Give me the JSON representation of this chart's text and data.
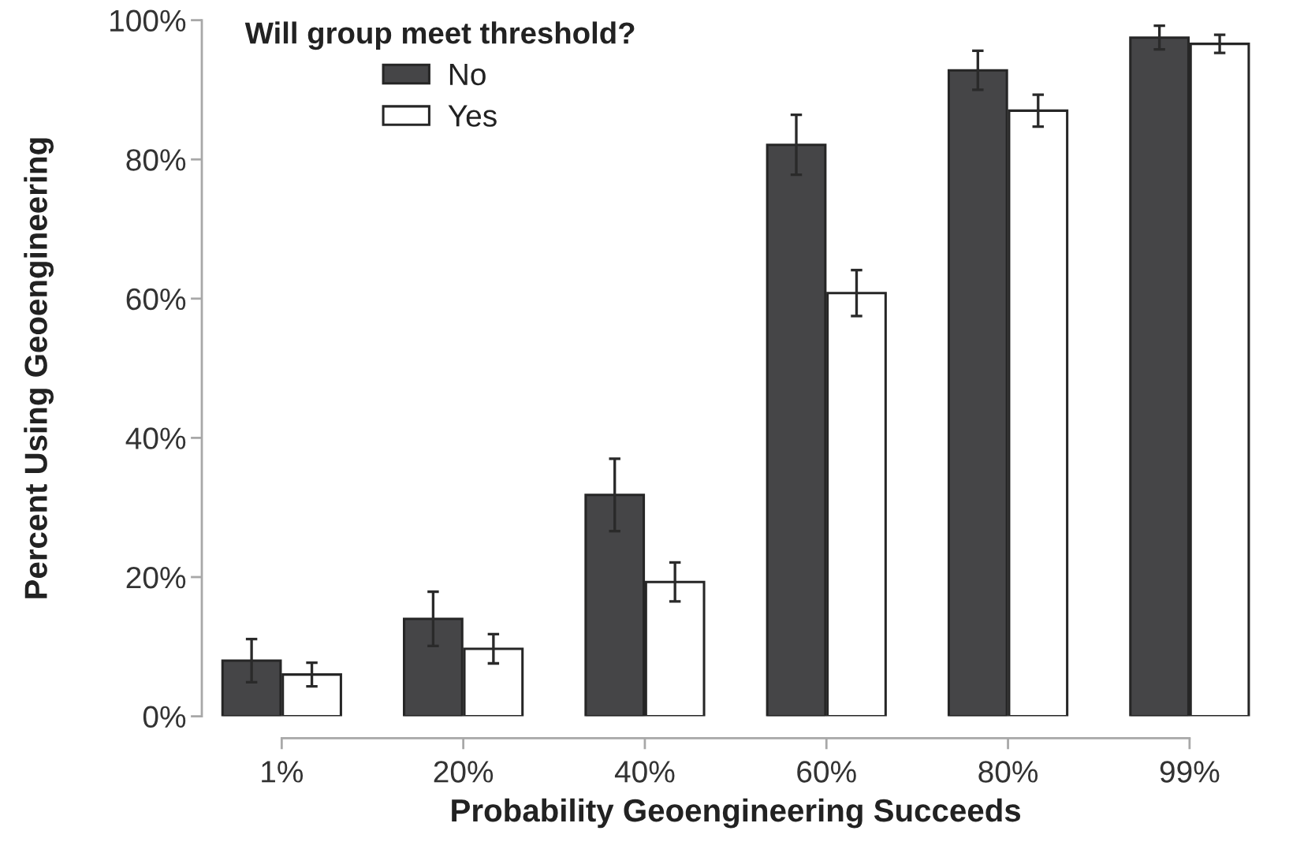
{
  "chart_data": {
    "type": "bar",
    "xlabel": "Probability Geoengineering Succeeds",
    "ylabel": "Percent Using Geoengineering",
    "legend_title": "Will group meet threshold?",
    "categories": [
      "1%",
      "20%",
      "40%",
      "60%",
      "80%",
      "99%"
    ],
    "series": [
      {
        "name": "No",
        "color": "#454547",
        "values": [
          8,
          14,
          31.8,
          82.1,
          92.8,
          97.5
        ],
        "errors": [
          3.1,
          3.9,
          5.2,
          4.3,
          2.8,
          1.7
        ]
      },
      {
        "name": "Yes",
        "color": "#ffffff",
        "values": [
          6,
          9.7,
          19.3,
          60.8,
          87,
          96.6
        ],
        "errors": [
          1.7,
          2.1,
          2.8,
          3.3,
          2.3,
          1.3
        ]
      }
    ],
    "ylim": [
      0,
      100
    ],
    "yticks": [
      {
        "value": 0,
        "label": "0%"
      },
      {
        "value": 20,
        "label": "20%"
      },
      {
        "value": 40,
        "label": "40%"
      },
      {
        "value": 60,
        "label": "60%"
      },
      {
        "value": 80,
        "label": "80%"
      },
      {
        "value": 100,
        "label": "100%"
      }
    ],
    "legend": "top left",
    "grid": false
  }
}
